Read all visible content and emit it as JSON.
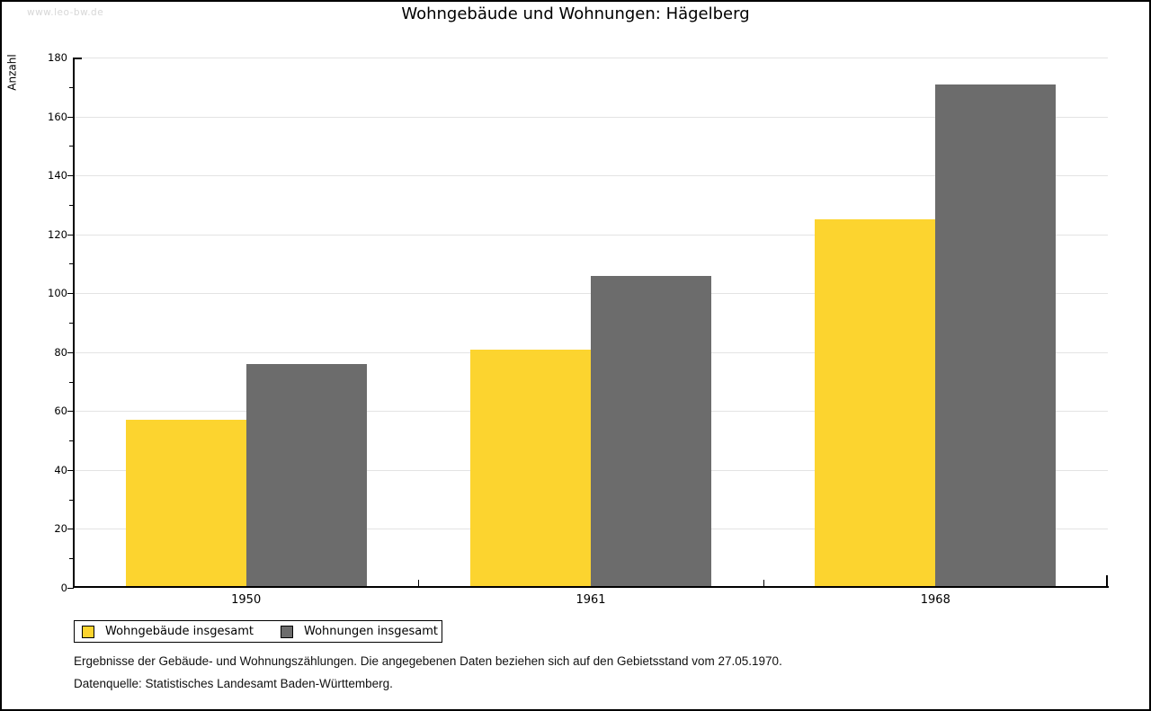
{
  "watermark": "www.leo-bw.de",
  "title": "Wohngebäude und Wohnungen: Hägelberg",
  "chart_data": {
    "type": "bar",
    "title": "Wohngebäude und Wohnungen: Hägelberg",
    "xlabel": "",
    "ylabel": "Anzahl",
    "categories": [
      "1950",
      "1961",
      "1968"
    ],
    "series": [
      {
        "name": "Wohngebäude insgesamt",
        "color": "#FCD42F",
        "values": [
          57,
          81,
          125
        ]
      },
      {
        "name": "Wohnungen insgesamt",
        "color": "#6C6C6C",
        "values": [
          76,
          106,
          171
        ]
      }
    ],
    "ylim": [
      0,
      180
    ],
    "ytick_major": 20,
    "ytick_minor": 10,
    "grid": true,
    "legend_position": "bottom-left"
  },
  "footnotes": [
    "Ergebnisse der Gebäude- und Wohnungszählungen. Die angegebenen Daten beziehen sich auf den Gebietsstand vom 27.05.1970.",
    "Datenquelle: Statistisches Landesamt Baden-Württemberg."
  ],
  "colors": {
    "background": "#FFFFFF",
    "axis": "#000000",
    "gridline": "#E3E3E3",
    "watermark": "#D7D7D7",
    "bar_yellow": "#FCD42F",
    "bar_gray": "#6C6C6C"
  }
}
